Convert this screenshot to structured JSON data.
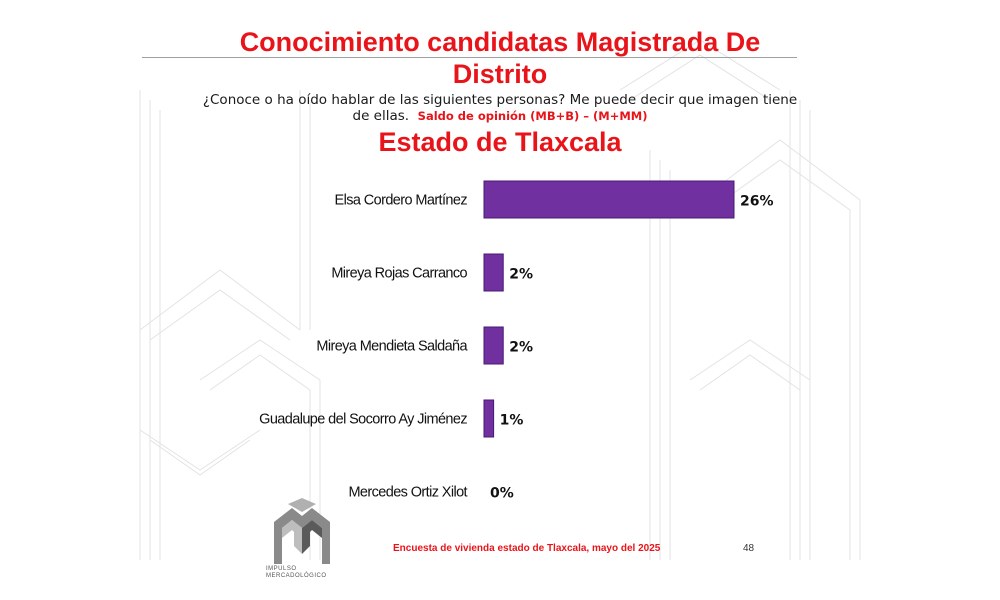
{
  "header": {
    "title_line1": "Conocimiento candidatas Magistrada De",
    "title_line2": "Distrito",
    "question_line1": "¿Conoce o ha oído hablar de las siguientes personas? Me puede decir que imagen tiene",
    "question_line2": "de ellas.",
    "saldo_label": "Saldo de opinión (MB+B) – (M+MM)",
    "region": "Estado de Tlaxcala"
  },
  "chart_data": {
    "type": "bar",
    "orientation": "horizontal",
    "categories": [
      "Elsa Cordero Martínez",
      "Mireya Rojas Carranco",
      "Mireya Mendieta Saldaña",
      "Guadalupe del Socorro Ay Jiménez",
      "Mercedes Ortiz Xilot"
    ],
    "values": [
      26,
      2,
      2,
      1,
      0
    ],
    "value_labels": [
      "26%",
      "2%",
      "2%",
      "1%",
      "0%"
    ],
    "xlim": [
      0,
      26
    ],
    "grid": false,
    "bar_color": "#7030a0"
  },
  "footer": {
    "source": "Encuesta de vivienda estado de Tlaxcala, mayo   del 2025",
    "page_number": "48"
  },
  "logo": {
    "icon": "impulso-mercadologico-logo",
    "text_line1": "IMPULSO",
    "text_line2": "MERCADOLÓGICO"
  }
}
